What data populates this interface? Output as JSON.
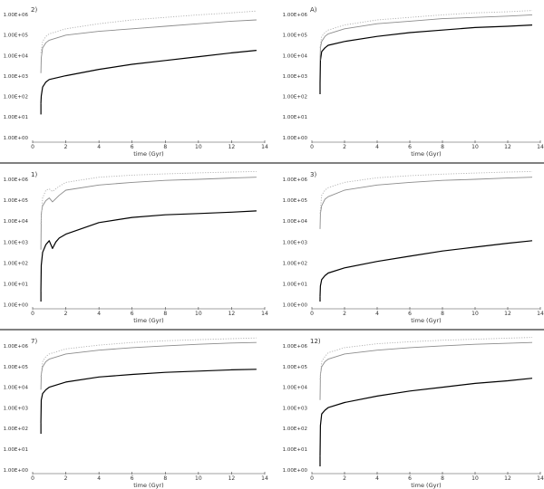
{
  "figure": {
    "panel_separator_color": "#000000",
    "colors": {
      "series_black": "#000000",
      "series_grey": "#8c8c8c",
      "series_light": "#b0b0b0",
      "axis": "#444444",
      "text": "#333333"
    }
  },
  "chart_data": [
    {
      "type": "line",
      "panel_label": "2)",
      "xlabel": "time (Gyr)",
      "xlim": [
        0,
        14
      ],
      "xticks": [
        "0",
        "2",
        "4",
        "6",
        "8",
        "10",
        "12",
        "14"
      ],
      "ylim_exponent": [
        5,
        10
      ],
      "log_y": true,
      "yticks": [
        "1.00E+06",
        "1.00E+05",
        "1.00E+04",
        "1.00E+03",
        "1.00E+02",
        "1.00E+01",
        "1.00E+00"
      ],
      "grid": false,
      "series": [
        {
          "style": "solid-black",
          "x": [
            0.5,
            0.52,
            0.6,
            0.8,
            1.0,
            2,
            4,
            6,
            8,
            10,
            12,
            13.5
          ],
          "y": [
            6.2,
            6.5,
            6.85,
            7.05,
            7.15,
            7.3,
            7.55,
            7.75,
            7.9,
            8.05,
            8.2,
            8.3
          ]
        },
        {
          "style": "solid-grey",
          "x": [
            0.5,
            0.52,
            0.6,
            0.8,
            1.0,
            2,
            4,
            6,
            8,
            10,
            12,
            13.5
          ],
          "y": [
            7.4,
            8.0,
            8.4,
            8.6,
            8.7,
            8.9,
            9.05,
            9.15,
            9.25,
            9.35,
            9.45,
            9.5
          ]
        },
        {
          "style": "dashed-light",
          "x": [
            0.5,
            0.6,
            0.8,
            1.0,
            2,
            4,
            6,
            8,
            10,
            12,
            13.5
          ],
          "y": [
            8.2,
            8.65,
            8.85,
            8.95,
            9.15,
            9.35,
            9.5,
            9.6,
            9.7,
            9.78,
            9.85
          ]
        }
      ]
    },
    {
      "type": "line",
      "panel_label": "A)",
      "xlabel": "time (Gyr)",
      "xlim": [
        0,
        14
      ],
      "xticks": [
        "0",
        "2",
        "4",
        "6",
        "8",
        "10",
        "12",
        "14"
      ],
      "ylim_exponent": [
        5,
        10
      ],
      "log_y": true,
      "yticks": [
        "1.00E+06",
        "1.00E+05",
        "1.00E+04",
        "1.00E+03",
        "1.00E+02",
        "1.00E+01",
        "1.00E+00"
      ],
      "grid": false,
      "series": [
        {
          "style": "solid-black",
          "x": [
            0.5,
            0.52,
            0.6,
            0.8,
            1.0,
            2,
            4,
            6,
            8,
            10,
            12,
            13.5
          ],
          "y": [
            7.0,
            7.9,
            8.25,
            8.4,
            8.5,
            8.65,
            8.85,
            9.0,
            9.1,
            9.2,
            9.25,
            9.3
          ]
        },
        {
          "style": "solid-grey",
          "x": [
            0.5,
            0.52,
            0.6,
            0.8,
            1.0,
            2,
            4,
            6,
            8,
            10,
            12,
            13.5
          ],
          "y": [
            7.9,
            8.4,
            8.65,
            8.85,
            8.95,
            9.15,
            9.35,
            9.45,
            9.55,
            9.6,
            9.65,
            9.7
          ]
        },
        {
          "style": "dashed-light",
          "x": [
            0.5,
            0.6,
            0.8,
            1.0,
            2,
            4,
            6,
            8,
            10,
            12,
            13.5
          ],
          "y": [
            8.4,
            8.85,
            9.0,
            9.1,
            9.3,
            9.5,
            9.6,
            9.7,
            9.78,
            9.82,
            9.87
          ]
        }
      ]
    },
    {
      "type": "line",
      "panel_label": "1)",
      "xlabel": "time (Gyr)",
      "xlim": [
        0,
        14
      ],
      "xticks": [
        "0",
        "2",
        "4",
        "6",
        "8",
        "10",
        "12",
        "14"
      ],
      "ylim_exponent": [
        5,
        10
      ],
      "log_y": true,
      "yticks": [
        "1.00E+06",
        "1.00E+05",
        "1.00E+04",
        "1.00E+03",
        "1.00E+02",
        "1.00E+01",
        "1.00E+00"
      ],
      "grid": false,
      "series": [
        {
          "style": "solid-black",
          "x": [
            0.5,
            0.52,
            0.6,
            0.8,
            1.0,
            1.2,
            1.4,
            1.6,
            2,
            4,
            6,
            8,
            10,
            12,
            13.5
          ],
          "y": [
            5.4,
            6.4,
            6.9,
            7.2,
            7.35,
            7.05,
            7.3,
            7.45,
            7.6,
            8.05,
            8.25,
            8.35,
            8.4,
            8.45,
            8.5
          ]
        },
        {
          "style": "solid-grey",
          "x": [
            0.5,
            0.52,
            0.6,
            0.8,
            1.0,
            1.2,
            1.6,
            2,
            4,
            6,
            8,
            10,
            12,
            13.5
          ],
          "y": [
            7.0,
            8.4,
            8.7,
            8.9,
            9.0,
            8.85,
            9.1,
            9.3,
            9.5,
            9.6,
            9.68,
            9.72,
            9.77,
            9.8
          ]
        },
        {
          "style": "dashed-light",
          "x": [
            0.5,
            0.6,
            0.8,
            1.0,
            1.2,
            1.6,
            2,
            4,
            6,
            8,
            10,
            12,
            13.5
          ],
          "y": [
            8.0,
            9.0,
            9.3,
            9.35,
            9.25,
            9.45,
            9.6,
            9.8,
            9.88,
            9.93,
            9.97,
            10.0,
            10.02
          ]
        }
      ]
    },
    {
      "type": "line",
      "panel_label": "3)",
      "xlabel": "time (Gyr)",
      "xlim": [
        0,
        14
      ],
      "xticks": [
        "0",
        "2",
        "4",
        "6",
        "8",
        "10",
        "12",
        "14"
      ],
      "ylim_exponent": [
        5,
        10
      ],
      "log_y": true,
      "yticks": [
        "1.00E+06",
        "1.00E+05",
        "1.00E+04",
        "1.00E+03",
        "1.00E+02",
        "1.00E+01",
        "1.00E+00"
      ],
      "grid": false,
      "series": [
        {
          "style": "solid-black",
          "x": [
            0.5,
            0.52,
            0.6,
            0.8,
            1.0,
            2,
            4,
            6,
            8,
            10,
            12,
            13.5
          ],
          "y": [
            5.2,
            5.6,
            5.85,
            6.0,
            6.1,
            6.3,
            6.55,
            6.75,
            6.95,
            7.1,
            7.25,
            7.35
          ]
        },
        {
          "style": "solid-grey",
          "x": [
            0.5,
            0.52,
            0.6,
            0.8,
            1.0,
            2,
            4,
            6,
            8,
            10,
            12,
            13.5
          ],
          "y": [
            7.8,
            8.4,
            8.7,
            8.95,
            9.05,
            9.3,
            9.5,
            9.6,
            9.68,
            9.72,
            9.77,
            9.8
          ]
        },
        {
          "style": "dashed-light",
          "x": [
            0.5,
            0.6,
            0.8,
            1.0,
            2,
            4,
            6,
            8,
            10,
            12,
            13.5
          ],
          "y": [
            8.4,
            9.1,
            9.3,
            9.4,
            9.6,
            9.78,
            9.86,
            9.92,
            9.96,
            10.0,
            10.02
          ]
        }
      ]
    },
    {
      "type": "line",
      "panel_label": "7)",
      "xlabel": "time (Gyr)",
      "xlim": [
        0,
        14
      ],
      "xticks": [
        "0",
        "2",
        "4",
        "6",
        "8",
        "10",
        "12",
        "14"
      ],
      "ylim_exponent": [
        5,
        10
      ],
      "log_y": true,
      "yticks": [
        "1.00E+06",
        "1.00E+05",
        "1.00E+04",
        "1.00E+03",
        "1.00E+02",
        "1.00E+01",
        "1.00E+00"
      ],
      "grid": false,
      "series": [
        {
          "style": "solid-black",
          "x": [
            0.5,
            0.52,
            0.6,
            0.8,
            1.0,
            2,
            4,
            6,
            8,
            10,
            12,
            13.5
          ],
          "y": [
            6.7,
            7.6,
            7.85,
            8.0,
            8.1,
            8.3,
            8.5,
            8.6,
            8.68,
            8.73,
            8.78,
            8.8
          ]
        },
        {
          "style": "solid-grey",
          "x": [
            0.5,
            0.52,
            0.6,
            0.8,
            1.0,
            2,
            4,
            6,
            8,
            10,
            12,
            13.5
          ],
          "y": [
            8.0,
            8.6,
            8.9,
            9.1,
            9.2,
            9.4,
            9.55,
            9.65,
            9.72,
            9.78,
            9.83,
            9.85
          ]
        },
        {
          "style": "dashed-light",
          "x": [
            0.5,
            0.6,
            0.8,
            1.0,
            2,
            4,
            6,
            8,
            10,
            12,
            13.5
          ],
          "y": [
            8.5,
            9.1,
            9.3,
            9.4,
            9.6,
            9.75,
            9.85,
            9.92,
            9.96,
            10.0,
            10.03
          ]
        }
      ]
    },
    {
      "type": "line",
      "panel_label": "12)",
      "xlabel": "time (Gyr)",
      "xlim": [
        0,
        14
      ],
      "xticks": [
        "0",
        "2",
        "4",
        "6",
        "8",
        "10",
        "12",
        "14"
      ],
      "ylim_exponent": [
        5,
        10
      ],
      "log_y": true,
      "yticks": [
        "1.00E+06",
        "1.00E+05",
        "1.00E+04",
        "1.00E+03",
        "1.00E+02",
        "1.00E+01",
        "1.00E+00"
      ],
      "grid": false,
      "series": [
        {
          "style": "solid-black",
          "x": [
            0.5,
            0.52,
            0.6,
            0.8,
            1.0,
            2,
            4,
            6,
            8,
            10,
            12,
            13.5
          ],
          "y": [
            5.4,
            6.6,
            7.05,
            7.2,
            7.3,
            7.5,
            7.75,
            7.95,
            8.1,
            8.25,
            8.35,
            8.45
          ]
        },
        {
          "style": "solid-grey",
          "x": [
            0.5,
            0.52,
            0.6,
            0.8,
            1.0,
            2,
            4,
            6,
            8,
            10,
            12,
            13.5
          ],
          "y": [
            7.6,
            8.6,
            8.9,
            9.1,
            9.2,
            9.4,
            9.55,
            9.65,
            9.72,
            9.78,
            9.82,
            9.85
          ]
        },
        {
          "style": "dashed-light",
          "x": [
            0.5,
            0.6,
            0.8,
            1.0,
            2,
            4,
            6,
            8,
            10,
            12,
            13.5
          ],
          "y": [
            8.4,
            9.1,
            9.3,
            9.45,
            9.65,
            9.8,
            9.88,
            9.94,
            9.98,
            10.02,
            10.05
          ]
        }
      ]
    }
  ]
}
